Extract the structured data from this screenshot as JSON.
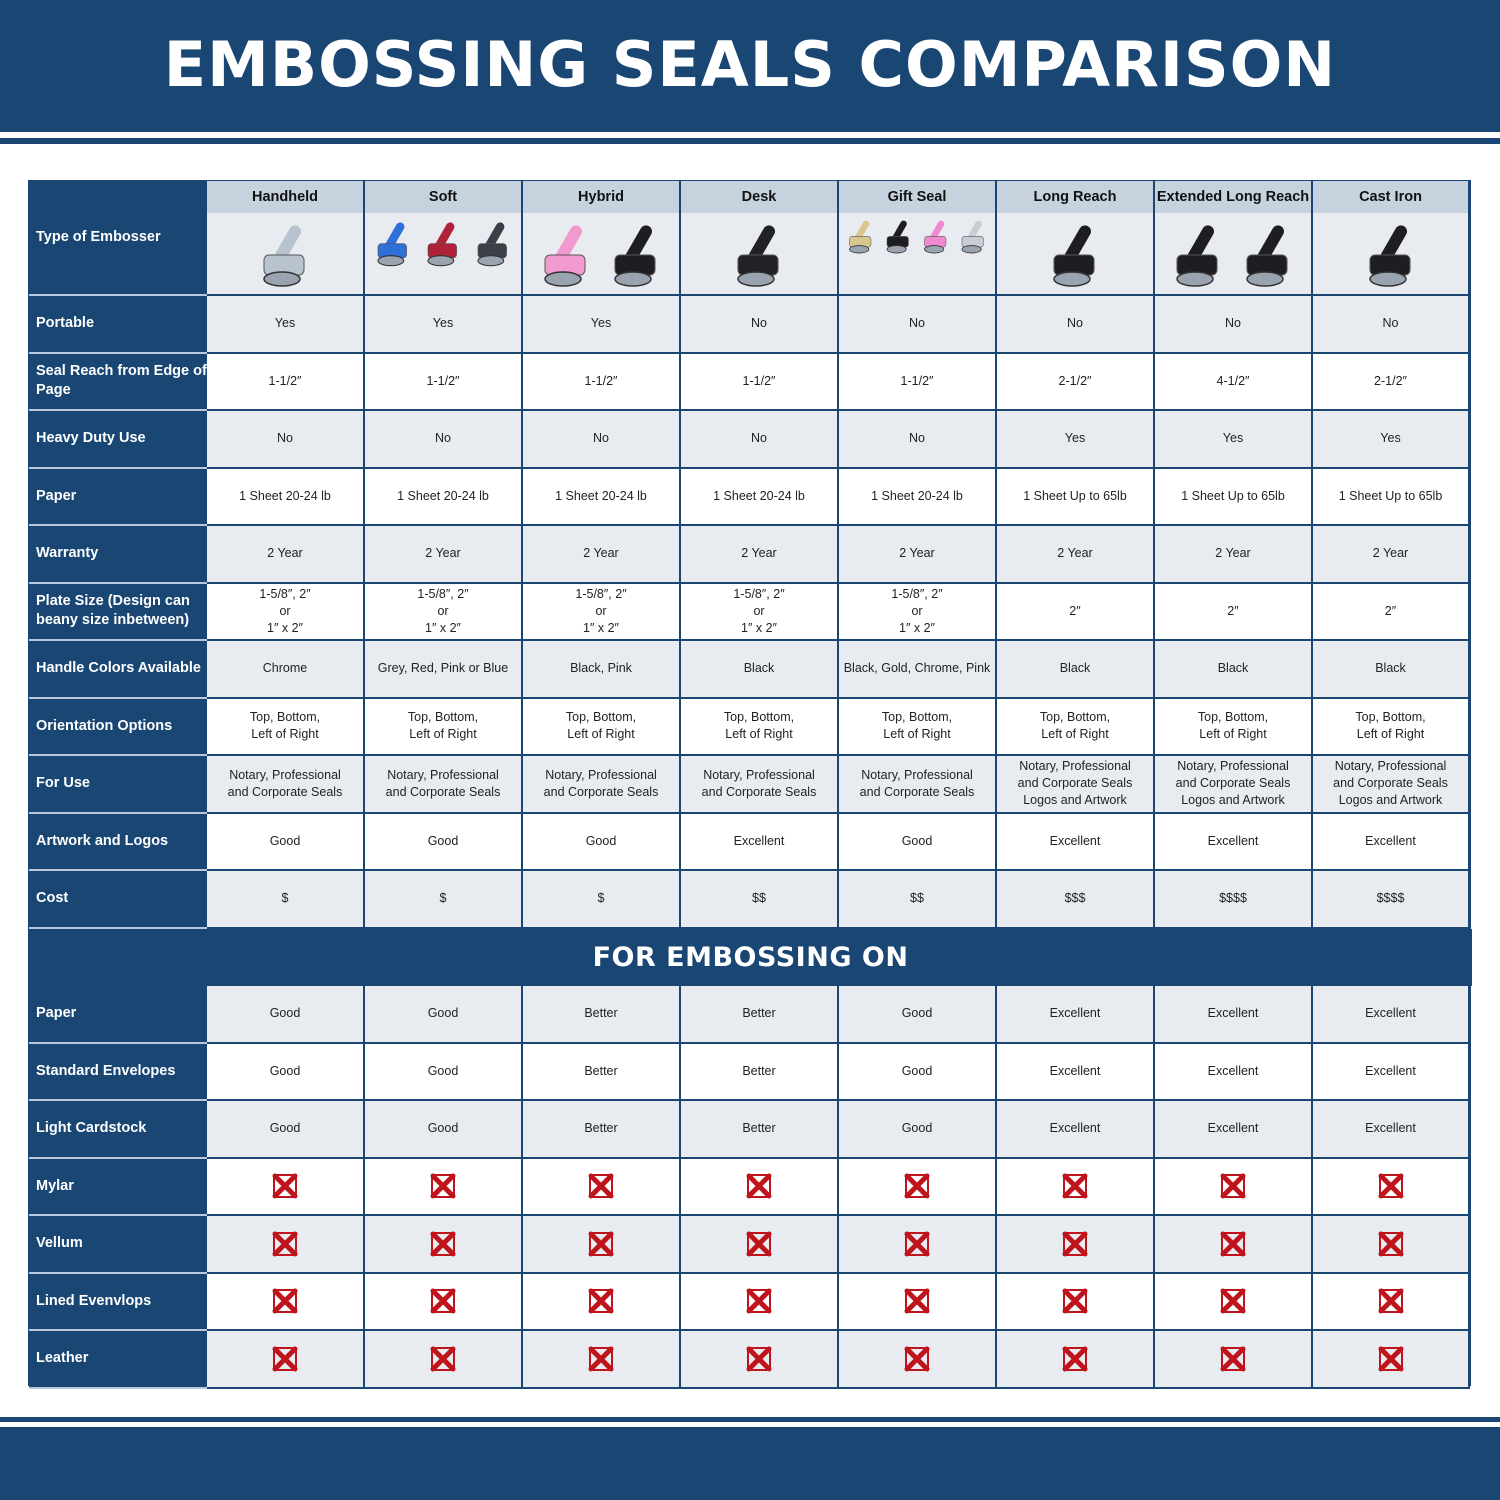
{
  "title": "EMBOSSING SEALS COMPARISON",
  "colors": {
    "brand_blue": "#1a4674",
    "header_grey": "#c6d3df",
    "row_grey": "#e8ecf0",
    "cross_red": "#c0141c"
  },
  "type_label": "Type of Embosser",
  "columns": [
    {
      "name": "Handheld",
      "image_colors": [
        "#b9c3cf"
      ]
    },
    {
      "name": "Soft",
      "image_colors": [
        "#2f6fd8",
        "#b0223a",
        "#3a3f48"
      ]
    },
    {
      "name": "Hybrid",
      "image_colors": [
        "#f29ad0",
        "#1e1e22"
      ]
    },
    {
      "name": "Desk",
      "image_colors": [
        "#222226"
      ]
    },
    {
      "name": "Gift Seal",
      "image_colors": [
        "#d8c890",
        "#1e1e22",
        "#f08ad0",
        "#c8ccd4"
      ]
    },
    {
      "name": "Long Reach",
      "image_colors": [
        "#1e1e22"
      ]
    },
    {
      "name": "Extended Long Reach",
      "image_colors": [
        "#1e1e22",
        "#1e1e22"
      ]
    },
    {
      "name": "Cast Iron",
      "image_colors": [
        "#1e1e22"
      ]
    }
  ],
  "rows": [
    {
      "label": "Portable",
      "values": [
        "Yes",
        "Yes",
        "Yes",
        "No",
        "No",
        "No",
        "No",
        "No"
      ]
    },
    {
      "label": "Seal Reach from Edge of Page",
      "values": [
        "1-1/2″",
        "1-1/2″",
        "1-1/2″",
        "1-1/2″",
        "1-1/2″",
        "2-1/2″",
        "4-1/2″",
        "2-1/2″"
      ]
    },
    {
      "label": "Heavy Duty Use",
      "values": [
        "No",
        "No",
        "No",
        "No",
        "No",
        "Yes",
        "Yes",
        "Yes"
      ]
    },
    {
      "label": "Paper",
      "values": [
        "1 Sheet 20-24 lb",
        "1 Sheet 20-24 lb",
        "1 Sheet 20-24 lb",
        "1 Sheet 20-24 lb",
        "1 Sheet 20-24 lb",
        "1 Sheet Up to 65lb",
        "1 Sheet Up to 65lb",
        "1 Sheet Up to 65lb"
      ]
    },
    {
      "label": "Warranty",
      "values": [
        "2 Year",
        "2 Year",
        "2 Year",
        "2 Year",
        "2 Year",
        "2 Year",
        "2 Year",
        "2 Year"
      ]
    },
    {
      "label": "Plate Size (Design can beany size inbetween)",
      "values": [
        "1-5/8″, 2″\nor\n1″ x 2″",
        "1-5/8″, 2″\nor\n1″ x 2″",
        "1-5/8″, 2″\nor\n1″ x 2″",
        "1-5/8″, 2″\nor\n1″ x 2″",
        "1-5/8″, 2″\nor\n1″ x 2″",
        "2″",
        "2″",
        "2″"
      ]
    },
    {
      "label": "Handle Colors Available",
      "values": [
        "Chrome",
        "Grey, Red, Pink or Blue",
        "Black, Pink",
        "Black",
        "Black, Gold, Chrome, Pink",
        "Black",
        "Black",
        "Black"
      ]
    },
    {
      "label": "Orientation Options",
      "values": [
        "Top, Bottom,\nLeft of Right",
        "Top, Bottom,\nLeft of Right",
        "Top, Bottom,\nLeft of Right",
        "Top, Bottom,\nLeft of Right",
        "Top, Bottom,\nLeft of Right",
        "Top, Bottom,\nLeft of Right",
        "Top, Bottom,\nLeft of Right",
        "Top, Bottom,\nLeft of Right"
      ]
    },
    {
      "label": "For Use",
      "values": [
        "Notary, Professional\nand Corporate Seals",
        "Notary, Professional\nand Corporate Seals",
        "Notary, Professional\nand Corporate Seals",
        "Notary, Professional\nand Corporate Seals",
        "Notary, Professional\nand Corporate Seals",
        "Notary, Professional\nand Corporate Seals\nLogos and Artwork",
        "Notary, Professional\nand Corporate Seals\nLogos and Artwork",
        "Notary, Professional\nand Corporate Seals\nLogos and Artwork"
      ]
    },
    {
      "label": "Artwork and Logos",
      "values": [
        "Good",
        "Good",
        "Good",
        "Excellent",
        "Good",
        "Excellent",
        "Excellent",
        "Excellent"
      ]
    },
    {
      "label": "Cost",
      "values": [
        "$",
        "$",
        "$",
        "$$",
        "$$",
        "$$$",
        "$$$$",
        "$$$$"
      ]
    }
  ],
  "section_title": "FOR EMBOSSING ON",
  "section_rows": [
    {
      "label": "Paper",
      "values": [
        "Good",
        "Good",
        "Better",
        "Better",
        "Good",
        "Excellent",
        "Excellent",
        "Excellent"
      ]
    },
    {
      "label": "Standard Envelopes",
      "values": [
        "Good",
        "Good",
        "Better",
        "Better",
        "Good",
        "Excellent",
        "Excellent",
        "Excellent"
      ]
    },
    {
      "label": "Light Cardstock",
      "values": [
        "Good",
        "Good",
        "Better",
        "Better",
        "Good",
        "Excellent",
        "Excellent",
        "Excellent"
      ]
    },
    {
      "label": "Mylar",
      "values": [
        "x-icon",
        "x-icon",
        "x-icon",
        "x-icon",
        "x-icon",
        "x-icon",
        "x-icon",
        "x-icon"
      ]
    },
    {
      "label": "Vellum",
      "values": [
        "x-icon",
        "x-icon",
        "x-icon",
        "x-icon",
        "x-icon",
        "x-icon",
        "x-icon",
        "x-icon"
      ]
    },
    {
      "label": "Lined Evenvlops",
      "values": [
        "x-icon",
        "x-icon",
        "x-icon",
        "x-icon",
        "x-icon",
        "x-icon",
        "x-icon",
        "x-icon"
      ]
    },
    {
      "label": "Leather",
      "values": [
        "x-icon",
        "x-icon",
        "x-icon",
        "x-icon",
        "x-icon",
        "x-icon",
        "x-icon",
        "x-icon"
      ]
    }
  ]
}
